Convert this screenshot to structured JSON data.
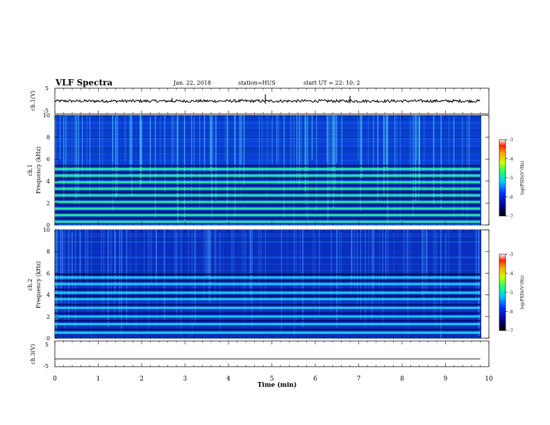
{
  "header": {
    "title": "VLF Spectra",
    "date": "Jan. 22, 2018",
    "station": "station=HUS",
    "start": "start UT =  22: 10: 2"
  },
  "chart_data": [
    {
      "type": "line",
      "panel": "ch1-waveform",
      "ylabel": "ch.1(V)",
      "ylim": [
        -5,
        5
      ],
      "yticks": [
        "5",
        "-5"
      ],
      "xlim": [
        0,
        10
      ],
      "baseline": 0,
      "spikes": [
        {
          "x": 2.7,
          "y": 1.2
        },
        {
          "x": 4.85,
          "y": 2.6
        },
        {
          "x": 6.8,
          "y": 2.0
        }
      ]
    },
    {
      "type": "heatmap",
      "panel": "ch1-spectrogram",
      "ylabel": "ch.1",
      "ylabel2": "Frequency (kHz)",
      "ylim": [
        0,
        10
      ],
      "yticks": [
        "0",
        "2",
        "4",
        "6",
        "8",
        "10"
      ],
      "xlim": [
        0,
        9.8
      ],
      "bands": [
        0.3,
        0.9,
        1.5,
        2.1,
        2.7,
        3.3,
        3.9,
        4.5,
        5.1
      ],
      "colorbar": {
        "label": "log(PSD)(V²/Hz)",
        "range": [
          -7,
          -3
        ],
        "ticks": [
          "-3",
          "-4",
          "-5",
          "-6",
          "-7"
        ]
      }
    },
    {
      "type": "heatmap",
      "panel": "ch2-spectrogram",
      "ylabel": "ch.2",
      "ylabel2": "Frequency (kHz)",
      "ylim": [
        0,
        10
      ],
      "yticks": [
        "0",
        "2",
        "4",
        "6",
        "8",
        "10"
      ],
      "xlim": [
        0,
        9.8
      ],
      "bands": [
        0.5,
        1.3,
        2.0,
        2.8,
        3.6,
        4.2,
        5.0,
        5.6
      ],
      "colorbar": {
        "label": "log(PSD)(V²/Hz)",
        "range": [
          -7,
          -3
        ],
        "ticks": [
          "-3",
          "-4",
          "-5",
          "-6",
          "-7"
        ]
      }
    },
    {
      "type": "line",
      "panel": "ch3-waveform",
      "ylabel": "ch.3(V)",
      "ylim": [
        -5,
        5
      ],
      "yticks": [
        "5",
        "-5"
      ],
      "xlim": [
        0,
        10
      ],
      "baseline": -2.0,
      "xlabel": "Time (min)",
      "xticks": [
        "0",
        "1",
        "2",
        "3",
        "4",
        "5",
        "6",
        "7",
        "8",
        "9",
        "10"
      ]
    }
  ]
}
